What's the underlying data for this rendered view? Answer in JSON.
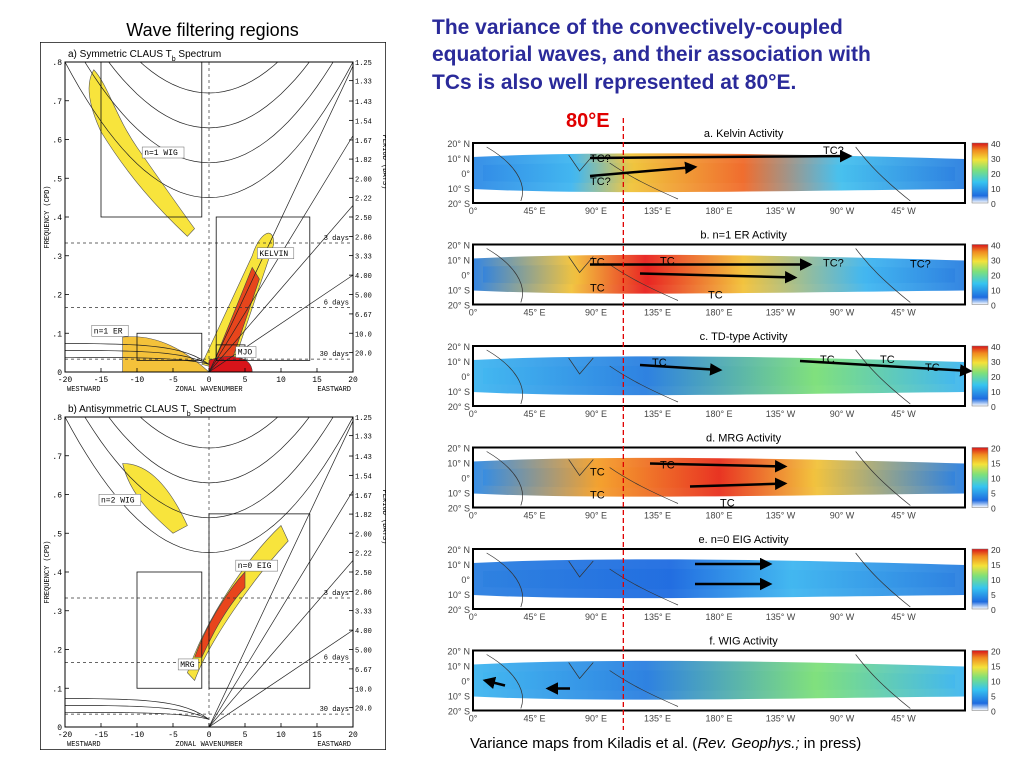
{
  "left_title": "Wave filtering regions",
  "main_title": {
    "line1": "The variance of the convectively-coupled",
    "line2": "equatorial waves, and their association with",
    "line3": "TCs is also well represented at 80°E."
  },
  "marker_label": "80°E",
  "caption": {
    "before": "Variance maps from Kiladis et al. (",
    "journal": "Rev. Geophys.;",
    "after": " in press)"
  },
  "colors": {
    "title_blue": "#2a2a9a",
    "marker_red": "#e00000"
  },
  "spectra": {
    "x_ticks": [
      "-20",
      "-15",
      "-10",
      "-5",
      "0",
      "5",
      "10",
      "15",
      "20"
    ],
    "y_ticks": [
      ".8",
      ".7",
      ".6",
      ".5",
      ".4",
      ".3",
      ".2",
      ".1",
      "0"
    ],
    "period_ticks": [
      "1.25",
      "1.33",
      "1.43",
      "1.54",
      "1.67",
      "1.82",
      "2.00",
      "2.22",
      "2.50",
      "2.86",
      "3.33",
      "4.00",
      "5.00",
      "6.67",
      "10.0",
      "20.0"
    ],
    "x_label": "ZONAL WAVENUMBER",
    "west_label": "WESTWARD",
    "east_label": "EASTWARD",
    "y_label": "FREQUENCY (CPD)",
    "period_label": "PERIOD (DAYS)",
    "day_lines": [
      "3 days",
      "6 days",
      "30 days"
    ],
    "panels": [
      {
        "title_prefix": "a) Symmetric CLAUS T",
        "title_sub": "b",
        "title_suffix": " Spectrum",
        "regions": [
          "n=1 WIG",
          "KELVIN",
          "n=1 ER",
          "MJO"
        ]
      },
      {
        "title_prefix": "b) Antisymmetric CLAUS T",
        "title_sub": "b",
        "title_suffix": " Spectrum",
        "regions": [
          "n=2 WIG",
          "n=0 EIG",
          "MRG"
        ]
      }
    ]
  },
  "maps": {
    "lat_labels": [
      "20° N",
      "10° N",
      "0°",
      "10° S",
      "20° S"
    ],
    "lon_labels": [
      "0°",
      "45° E",
      "90° E",
      "135° E",
      "180° E",
      "135° W",
      "90° W",
      "45° W"
    ],
    "panels": [
      {
        "title": "a. Kelvin Activity",
        "scale": [
          "40",
          "30",
          "20",
          "10",
          "0"
        ],
        "tc": [
          "TC?",
          "TC?",
          "TC?"
        ]
      },
      {
        "title": "b. n=1 ER Activity",
        "scale": [
          "40",
          "30",
          "20",
          "10",
          "0"
        ],
        "tc": [
          "TC",
          "TC",
          "TC?",
          "TC?",
          "TC",
          "TC"
        ]
      },
      {
        "title": "c. TD-type Activity",
        "scale": [
          "40",
          "30",
          "20",
          "10",
          "0"
        ],
        "tc": [
          "TC",
          "TC",
          "TC",
          "TC"
        ]
      },
      {
        "title": "d. MRG Activity",
        "scale": [
          "20",
          "15",
          "10",
          "5",
          "0"
        ],
        "tc": [
          "TC",
          "TC",
          "TC",
          "TC"
        ]
      },
      {
        "title": "e. n=0 EIG Activity",
        "scale": [
          "20",
          "15",
          "10",
          "5",
          "0"
        ],
        "tc": []
      },
      {
        "title": "f. WIG Activity",
        "scale": [
          "20",
          "15",
          "10",
          "5",
          "0"
        ],
        "tc": []
      }
    ]
  }
}
